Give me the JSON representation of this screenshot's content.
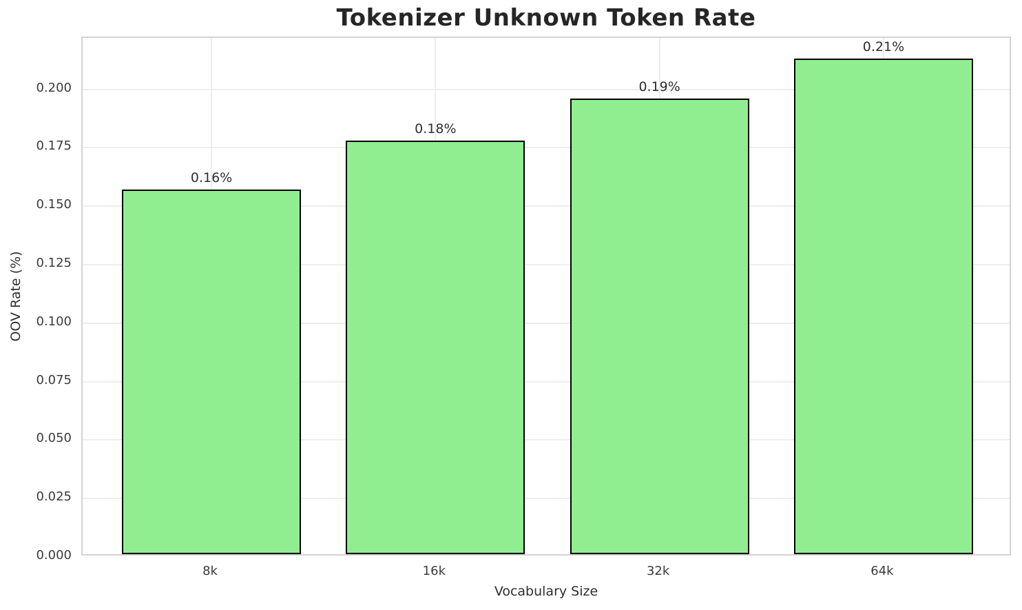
{
  "chart_data": {
    "type": "bar",
    "title": "Tokenizer Unknown Token Rate",
    "xlabel": "Vocabulary Size",
    "ylabel": "OOV Rate (%)",
    "categories": [
      "8k",
      "16k",
      "32k",
      "64k"
    ],
    "values": [
      0.156,
      0.177,
      0.195,
      0.212
    ],
    "bar_labels": [
      "0.16%",
      "0.18%",
      "0.19%",
      "0.21%"
    ],
    "ylim": [
      0,
      0.222
    ],
    "yticks": [
      "0.000",
      "0.025",
      "0.050",
      "0.075",
      "0.100",
      "0.125",
      "0.150",
      "0.175",
      "0.200"
    ],
    "bar_color": "#90ee90",
    "bar_edge_color": "#000000",
    "grid": true,
    "legend": "none",
    "background": "#ffffff"
  }
}
